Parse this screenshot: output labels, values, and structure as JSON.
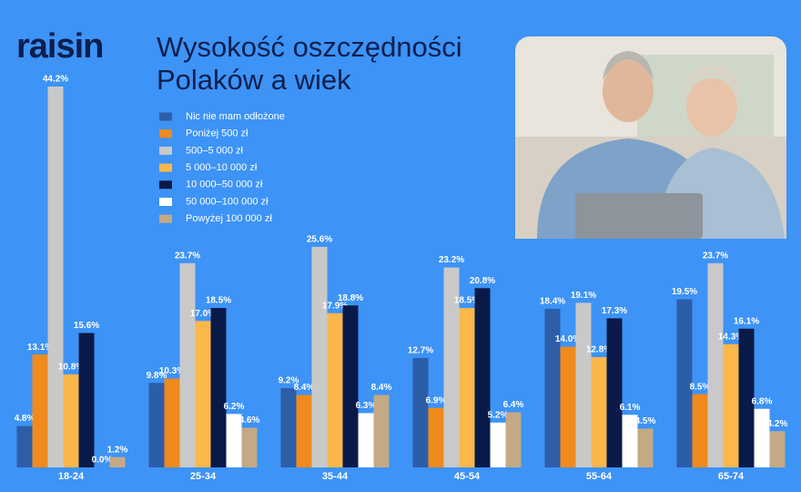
{
  "brand": "raisin",
  "chart_data": {
    "type": "bar",
    "title": "Wysokość oszczędności Polaków a wiek",
    "categories": [
      "18-24",
      "25-34",
      "35-44",
      "45-54",
      "55-64",
      "65-74"
    ],
    "series": [
      {
        "name": "Nic nie mam odłożone",
        "color": "#2c5ea8",
        "values": [
          4.8,
          9.8,
          9.2,
          12.7,
          18.4,
          19.5
        ],
        "value_labels": [
          "4.8%",
          "9.8%",
          "9.2%",
          "12.7%",
          "18.4%",
          "19.5%"
        ]
      },
      {
        "name": "Poniżej 500 zł",
        "color": "#f08a1c",
        "values": [
          13.1,
          10.3,
          8.4,
          6.9,
          14.0,
          8.5
        ],
        "value_labels": [
          "13.1%",
          "10.3%",
          "8.4%",
          "6.9%",
          "14.0%",
          "8.5%"
        ]
      },
      {
        "name": "500–5 000 zł",
        "color": "#c9c9c9",
        "values": [
          44.2,
          23.7,
          25.6,
          23.2,
          19.1,
          23.7
        ],
        "value_labels": [
          "44.2%",
          "23.7%",
          "25.6%",
          "23.2%",
          "19.1%",
          "23.7%"
        ]
      },
      {
        "name": "5 000–10 000 zł",
        "color": "#fbb74a",
        "values": [
          10.8,
          17.0,
          17.9,
          18.5,
          12.8,
          14.3
        ],
        "value_labels": [
          "10.8%",
          "17.0%",
          "17.9%",
          "18.5%",
          "12.8%",
          "14.3%"
        ]
      },
      {
        "name": "10 000–50 000 zł",
        "color": "#0a1a48",
        "values": [
          15.6,
          18.5,
          18.8,
          20.8,
          17.3,
          16.1
        ],
        "value_labels": [
          "15.6%",
          "18.5%",
          "18.8%",
          "20.8%",
          "17.3%",
          "16.1%"
        ]
      },
      {
        "name": "50 000–100 000 zł",
        "color": "#ffffff",
        "values": [
          0.0,
          6.2,
          6.3,
          5.2,
          6.1,
          6.8
        ],
        "value_labels": [
          "0.0%",
          "6.2%",
          "6.3%",
          "5.2%",
          "6.1%",
          "6.8%"
        ]
      },
      {
        "name": "Powyżej 100 000 zł",
        "color": "#c4a984",
        "values": [
          1.2,
          4.6,
          8.4,
          6.4,
          4.5,
          4.2
        ],
        "value_labels": [
          "1.2%",
          "4.6%",
          "8.4%",
          "6.4%",
          "4.5%",
          "4.2%"
        ]
      }
    ]
  }
}
